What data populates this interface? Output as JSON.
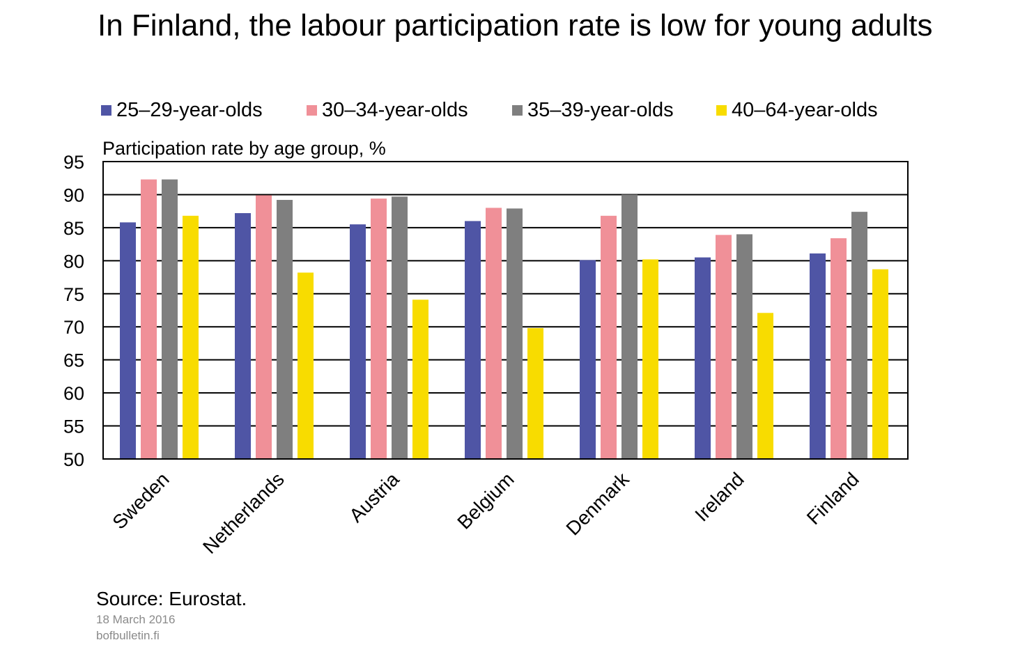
{
  "title": "In Finland, the labour participation rate is low for young adults",
  "chart_data": {
    "type": "bar",
    "subtitle": "Participation rate by age group, %",
    "categories": [
      "Sweden",
      "Netherlands",
      "Austria",
      "Belgium",
      "Denmark",
      "Ireland",
      "Finland"
    ],
    "series": [
      {
        "name": "25–29-year-olds",
        "color": "#4f55a5",
        "values": [
          85.8,
          87.2,
          85.5,
          86.0,
          80.1,
          80.5,
          81.1
        ]
      },
      {
        "name": "30–34-year-olds",
        "color": "#f09098",
        "values": [
          92.3,
          89.9,
          89.4,
          88.0,
          86.8,
          83.9,
          83.4
        ]
      },
      {
        "name": "35–39-year-olds",
        "color": "#7f7f7f",
        "values": [
          92.3,
          89.2,
          89.7,
          87.9,
          90.0,
          84.0,
          87.4
        ]
      },
      {
        "name": "40–64-year-olds",
        "color": "#f8dc00",
        "values": [
          86.8,
          78.2,
          74.1,
          69.8,
          80.2,
          72.1,
          78.7
        ]
      }
    ],
    "yticks": [
      50,
      55,
      60,
      65,
      70,
      75,
      80,
      85,
      90,
      95
    ],
    "ylim": [
      50,
      95
    ],
    "grid": true,
    "legend_position": "top"
  },
  "source": "Source: Eurostat.",
  "footer": {
    "date": "18 March 2016",
    "site": "bofbulletin.fi"
  }
}
